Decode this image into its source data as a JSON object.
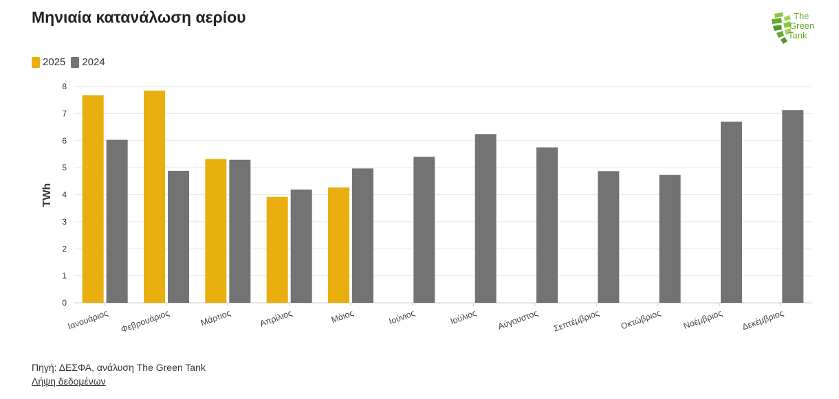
{
  "title": "Μηνιαία κατανάλωση αερίου",
  "logo": {
    "line1": "The",
    "line2": "Green",
    "line3": "Tank"
  },
  "legend": [
    {
      "label": "2025",
      "color": "#e8af0f"
    },
    {
      "label": "2024",
      "color": "#737373"
    }
  ],
  "footer": {
    "source": "Πηγή: ΔΕΣΦΑ, ανάλυση The Green Tank",
    "download": "Λήψη δεδομένων"
  },
  "chart_data": {
    "type": "bar",
    "categories": [
      "Ιανουάριος",
      "Φεβρουάριος",
      "Μάρτιος",
      "Απρίλιος",
      "Μάιος",
      "Ιούνιος",
      "Ιούλιος",
      "Αύγουστος",
      "Σεπτέμβριος",
      "Οκτώβριος",
      "Νοέμβριος",
      "Δεκέμβριος"
    ],
    "series": [
      {
        "name": "2025",
        "color": "#e8af0f",
        "values": [
          7.68,
          7.85,
          5.32,
          3.92,
          4.27,
          null,
          null,
          null,
          null,
          null,
          null,
          null
        ]
      },
      {
        "name": "2024",
        "color": "#737373",
        "values": [
          6.03,
          4.88,
          5.29,
          4.19,
          4.97,
          5.4,
          6.24,
          5.75,
          4.87,
          4.73,
          6.7,
          7.13
        ]
      }
    ],
    "ylabel": "TWh",
    "ylim": [
      0,
      8
    ],
    "yticks": [
      0,
      1,
      2,
      3,
      4,
      5,
      6,
      7,
      8
    ],
    "grid": true,
    "legend_position": "top-left"
  }
}
